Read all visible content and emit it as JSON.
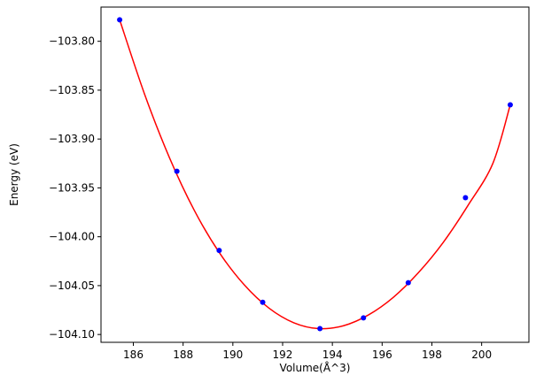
{
  "chart_data": {
    "type": "scatter",
    "xlabel": "Volume(Å^3)",
    "ylabel": "Energy (eV)",
    "xlim": [
      184.7,
      201.9
    ],
    "ylim": [
      -104.108,
      -103.765
    ],
    "xticks": [
      186,
      188,
      190,
      192,
      194,
      196,
      198,
      200
    ],
    "yticks": [
      -103.8,
      -103.85,
      -103.9,
      -103.95,
      -104.0,
      -104.05,
      -104.1
    ],
    "ytick_labels": [
      "−103.80",
      "−103.85",
      "−103.90",
      "−103.95",
      "−104.00",
      "−104.05",
      "−104.10"
    ],
    "grid": false,
    "series": [
      {
        "kind": "points",
        "color": "#0000ff",
        "x": [
          185.45,
          187.75,
          189.45,
          191.2,
          193.5,
          195.25,
          197.05,
          199.35,
          201.15
        ],
        "y": [
          -103.778,
          -103.933,
          -104.014,
          -104.067,
          -104.094,
          -104.083,
          -104.047,
          -103.96,
          -103.865
        ]
      },
      {
        "kind": "fit-curve",
        "color": "#ff0000",
        "x": [
          185.45,
          186.45,
          187.45,
          188.45,
          189.45,
          190.45,
          191.45,
          192.45,
          193.45,
          194.45,
          195.45,
          196.45,
          197.45,
          198.45,
          199.45,
          200.45,
          201.15
        ],
        "y": [
          -103.778,
          -103.854,
          -103.919,
          -103.973,
          -104.016,
          -104.049,
          -104.073,
          -104.088,
          -104.094,
          -104.091,
          -104.08,
          -104.062,
          -104.037,
          -104.006,
          -103.968,
          -103.925,
          -103.865
        ]
      }
    ]
  }
}
